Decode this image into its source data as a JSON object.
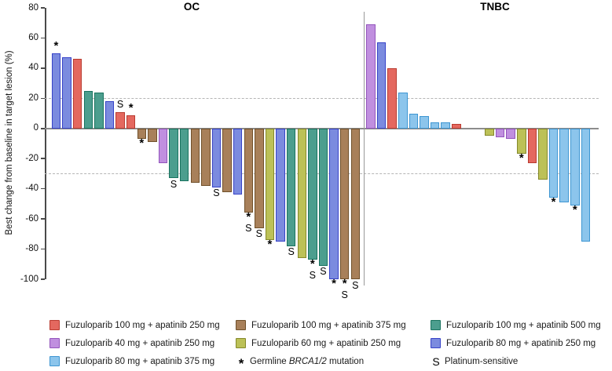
{
  "chart_data": {
    "type": "bar",
    "subtype": "waterfall",
    "title": "",
    "ylabel": "Best change from baseline in target lesion (%)",
    "ylim": [
      -100,
      80
    ],
    "yticks": [
      80,
      60,
      40,
      20,
      0,
      -20,
      -40,
      -60,
      -80,
      -100
    ],
    "reference_dashed_lines": [
      20,
      -30
    ],
    "grid": "off",
    "legend_position": "bottom",
    "series": {
      "red": {
        "label": "Fuzuloparib 100 mg + apatinib 250 mg",
        "fill": "#E4685F",
        "border": "#B93B30"
      },
      "purple": {
        "label": "Fuzuloparib 40 mg + apatinib 250 mg",
        "fill": "#C08FDF",
        "border": "#9355BC"
      },
      "skyblue": {
        "label": "Fuzuloparib 80 mg + apatinib 375 mg",
        "fill": "#8CC5EC",
        "border": "#3E96D2"
      },
      "brown": {
        "label": "Fuzuloparib 100 mg + apatinib 375 mg",
        "fill": "#A8805A",
        "border": "#70502A"
      },
      "olive": {
        "label": "Fuzuloparib 60 mg + apatinib 250 mg",
        "fill": "#BCC157",
        "border": "#85892B"
      },
      "teal": {
        "label": "Fuzuloparib 100 mg + apatinib 500 mg",
        "fill": "#4C9E8E",
        "border": "#19735F"
      },
      "blue": {
        "label": "Fuzuloparib 80 mg + apatinib 250 mg",
        "fill": "#7B8BDF",
        "border": "#3743C8"
      }
    },
    "marker_meanings": {
      "asterisk": "Germline BRCA1/2 mutation",
      "S": "Platinum-sensitive"
    },
    "panels": [
      {
        "title": "OC",
        "bars": [
          {
            "value": 50,
            "series": "blue",
            "marks": "*"
          },
          {
            "value": 47,
            "series": "blue",
            "marks": ""
          },
          {
            "value": 46,
            "series": "red",
            "marks": ""
          },
          {
            "value": 25,
            "series": "teal",
            "marks": ""
          },
          {
            "value": 24,
            "series": "teal",
            "marks": ""
          },
          {
            "value": 18,
            "series": "blue",
            "marks": ""
          },
          {
            "value": 11,
            "series": "red",
            "marks": "S"
          },
          {
            "value": 9,
            "series": "red",
            "marks": "*"
          },
          {
            "value": -7,
            "series": "brown",
            "marks": "*"
          },
          {
            "value": -9,
            "series": "brown",
            "marks": ""
          },
          {
            "value": -23,
            "series": "purple",
            "marks": ""
          },
          {
            "value": -33,
            "series": "teal",
            "marks": "S"
          },
          {
            "value": -35,
            "series": "teal",
            "marks": ""
          },
          {
            "value": -36,
            "series": "brown",
            "marks": ""
          },
          {
            "value": -38,
            "series": "brown",
            "marks": ""
          },
          {
            "value": -39,
            "series": "blue",
            "marks": "S"
          },
          {
            "value": -42,
            "series": "brown",
            "marks": ""
          },
          {
            "value": -44,
            "series": "blue",
            "marks": ""
          },
          {
            "value": -56,
            "series": "brown",
            "marks": "*S"
          },
          {
            "value": -66,
            "series": "brown",
            "marks": "S"
          },
          {
            "value": -74,
            "series": "olive",
            "marks": "*"
          },
          {
            "value": -75,
            "series": "blue",
            "marks": ""
          },
          {
            "value": -78,
            "series": "teal",
            "marks": "S"
          },
          {
            "value": -86,
            "series": "olive",
            "marks": ""
          },
          {
            "value": -87,
            "series": "teal",
            "marks": "*S"
          },
          {
            "value": -91,
            "series": "teal",
            "marks": "S"
          },
          {
            "value": -100,
            "series": "blue",
            "marks": "*"
          },
          {
            "value": -100,
            "series": "brown",
            "marks": "*S"
          },
          {
            "value": -100,
            "series": "brown",
            "marks": "S"
          }
        ]
      },
      {
        "title": "TNBC",
        "gap_after_bar_index": 8,
        "bars": [
          {
            "value": 69,
            "series": "purple",
            "marks": ""
          },
          {
            "value": 57,
            "series": "blue",
            "marks": ""
          },
          {
            "value": 40,
            "series": "red",
            "marks": ""
          },
          {
            "value": 24,
            "series": "skyblue",
            "marks": ""
          },
          {
            "value": 10,
            "series": "skyblue",
            "marks": ""
          },
          {
            "value": 8,
            "series": "skyblue",
            "marks": ""
          },
          {
            "value": 4,
            "series": "skyblue",
            "marks": ""
          },
          {
            "value": 4,
            "series": "skyblue",
            "marks": ""
          },
          {
            "value": 3,
            "series": "red",
            "marks": ""
          },
          {
            "value": -5,
            "series": "olive",
            "marks": ""
          },
          {
            "value": -6,
            "series": "purple",
            "marks": ""
          },
          {
            "value": -7,
            "series": "purple",
            "marks": ""
          },
          {
            "value": -17,
            "series": "olive",
            "marks": "*"
          },
          {
            "value": -23,
            "series": "red",
            "marks": ""
          },
          {
            "value": -34,
            "series": "olive",
            "marks": ""
          },
          {
            "value": -46,
            "series": "skyblue",
            "marks": "*"
          },
          {
            "value": -49,
            "series": "skyblue",
            "marks": ""
          },
          {
            "value": -51,
            "series": "skyblue",
            "marks": "*"
          },
          {
            "value": -75,
            "series": "skyblue",
            "marks": ""
          }
        ]
      }
    ],
    "legend": {
      "columns": [
        {
          "items": [
            {
              "swatch": "red"
            },
            {
              "swatch": "purple"
            },
            {
              "swatch": "skyblue"
            }
          ]
        },
        {
          "items": [
            {
              "swatch": "brown"
            },
            {
              "swatch": "olive"
            },
            {
              "symbol": "*",
              "prefix": "Germline ",
              "italic": "BRCA1/2",
              "suffix": " mutation"
            }
          ]
        },
        {
          "items": [
            {
              "swatch": "teal"
            },
            {
              "swatch": "blue"
            },
            {
              "symbol": "S",
              "label": "Platinum-sensitive"
            }
          ]
        }
      ]
    }
  }
}
